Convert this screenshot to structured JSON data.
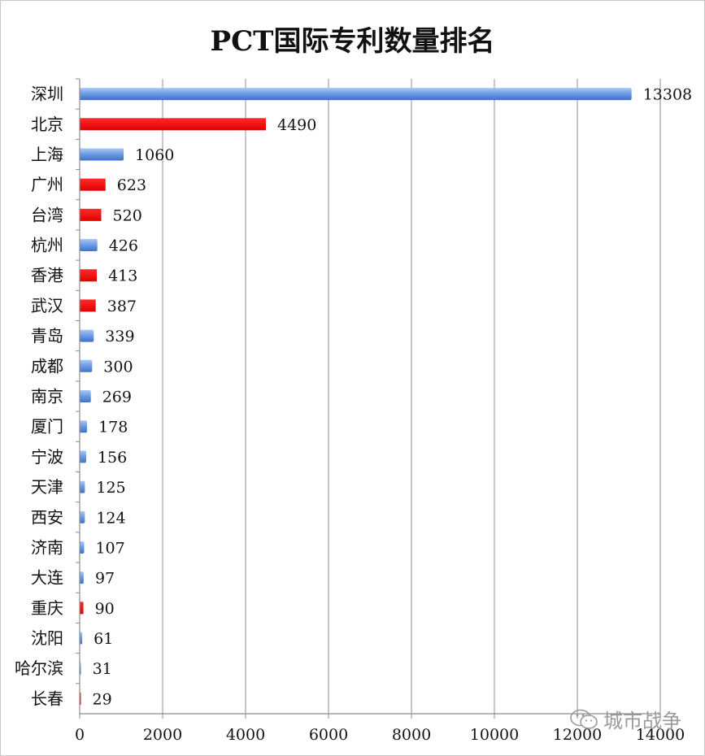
{
  "chart_data": {
    "type": "bar",
    "orientation": "horizontal",
    "title": "PCT国际专利数量排名",
    "categories": [
      "深圳",
      "北京",
      "上海",
      "广州",
      "台湾",
      "杭州",
      "香港",
      "武汉",
      "青岛",
      "成都",
      "南京",
      "厦门",
      "宁波",
      "天津",
      "西安",
      "济南",
      "大连",
      "重庆",
      "沈阳",
      "哈尔滨",
      "长春"
    ],
    "values": [
      13308,
      4490,
      1060,
      623,
      520,
      426,
      413,
      387,
      339,
      300,
      269,
      178,
      156,
      125,
      124,
      107,
      97,
      90,
      61,
      31,
      29
    ],
    "bar_colors": [
      "blue",
      "red",
      "blue",
      "red",
      "red",
      "blue",
      "red",
      "red",
      "blue",
      "blue",
      "blue",
      "blue",
      "blue",
      "blue",
      "blue",
      "blue",
      "blue",
      "red",
      "blue",
      "blue",
      "red"
    ],
    "xlim": [
      0,
      14000
    ],
    "x_ticks": [
      0,
      2000,
      4000,
      6000,
      8000,
      10000,
      12000,
      14000
    ],
    "grid": "vertical",
    "legend": "none"
  },
  "colors": {
    "blue": "#6f9ee6",
    "blue_dark": "#3f72c4",
    "red": "#ff0000",
    "grid": "#8c8c8c",
    "axis": "#8c8c8c"
  },
  "watermark": {
    "text": "城市战争",
    "icon": "wechat-logo-icon"
  }
}
